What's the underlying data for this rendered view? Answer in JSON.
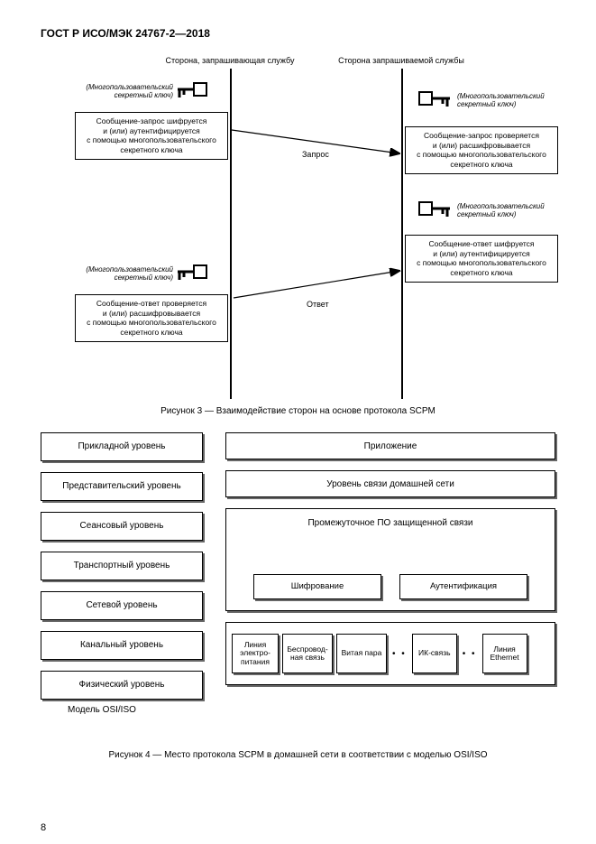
{
  "doc_title": "ГОСТ Р ИСО/МЭК 24767-2—2018",
  "page_number": "8",
  "fig3": {
    "left_header": "Сторона, запрашивающая службу",
    "right_header": "Сторона запрашиваемой службы",
    "key_note_left_top": "(Многопользовательский\nсекретный ключ)",
    "key_note_right_top": "(Многопользовательский\nсекретный ключ)",
    "key_note_right_mid": "(Многопользовательский\nсекретный ключ)",
    "key_note_left_bot": "(Многопользовательский\nсекретный ключ)",
    "box_left_top": "Сообщение-запрос шифруется\nи (или) аутентифицируется\nс помощью многопользовательского\nсекретного ключа",
    "box_right_top": "Сообщение-запрос проверяется\nи (или) расшифровывается\nс помощью многопользовательского\nсекретного ключа",
    "box_right_mid": "Сообщение-ответ шифруется\nи (или) аутентифицируется\nс помощью многопользовательского\nсекретного ключа",
    "box_left_bot": "Сообщение-ответ проверяется\nи (или) расшифровывается\nс помощью многопользовательского\nсекретного ключа",
    "label_req": "Запрос",
    "label_resp": "Ответ",
    "caption": "Рисунок 3 — Взаимодействие сторон на основе протокола SCPM"
  },
  "fig4": {
    "osi": [
      "Прикладной уровень",
      "Представительский уровень",
      "Сеансовый уровень",
      "Транспортный уровень",
      "Сетевой уровень",
      "Канальный уровень",
      "Физический уровень"
    ],
    "osi_label": "Модель OSI/ISO",
    "app": "Приложение",
    "link": "Уровень связи домашней сети",
    "mw_title": "Промежуточное ПО защищенной связи",
    "mw_sub": [
      "Шифрование",
      "Аутентификация"
    ],
    "media": [
      "Линия электро-\nпитания",
      "Беспровод-\nная связь",
      "Витая пара",
      "ИК-связь",
      "Линия Ethernet"
    ],
    "caption": "Рисунок 4 — Место протокола SCPM в домашней сети в соответствии с моделью OSI/ISO"
  }
}
